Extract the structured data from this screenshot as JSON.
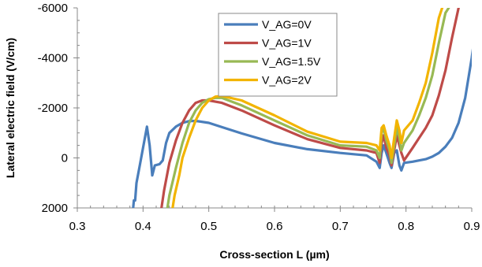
{
  "chart_data": {
    "type": "line",
    "xlabel": "Cross-section L (µm)",
    "ylabel": "Lateral electric field (V/cm)",
    "xlim": [
      0.3,
      0.9
    ],
    "ylim": [
      2000,
      -6000
    ],
    "x_ticks": [
      0.3,
      0.4,
      0.5,
      0.6,
      0.7,
      0.8,
      0.9
    ],
    "x_tick_labels": [
      "0.3",
      "0.4",
      "0.5",
      "0.6",
      "0.7",
      "0.8",
      "0.9"
    ],
    "y_ticks": [
      2000,
      0,
      -2000,
      -4000,
      -6000
    ],
    "y_tick_labels": [
      "2000",
      "0",
      "-2000",
      "-4000",
      "-6000"
    ],
    "y_reversed": true,
    "grid": false,
    "legend_position": "top-right",
    "series": [
      {
        "name": "V_AG=0V",
        "color": "#4a7ebb",
        "points": [
          [
            0.385,
            2000
          ],
          [
            0.386,
            1700
          ],
          [
            0.388,
            1700
          ],
          [
            0.39,
            1000
          ],
          [
            0.395,
            300
          ],
          [
            0.4,
            -400
          ],
          [
            0.406,
            -1250
          ],
          [
            0.41,
            -500
          ],
          [
            0.414,
            700
          ],
          [
            0.418,
            300
          ],
          [
            0.425,
            250
          ],
          [
            0.43,
            100
          ],
          [
            0.435,
            -600
          ],
          [
            0.44,
            -1000
          ],
          [
            0.45,
            -1250
          ],
          [
            0.46,
            -1400
          ],
          [
            0.47,
            -1470
          ],
          [
            0.48,
            -1480
          ],
          [
            0.5,
            -1400
          ],
          [
            0.52,
            -1230
          ],
          [
            0.55,
            -980
          ],
          [
            0.6,
            -600
          ],
          [
            0.65,
            -350
          ],
          [
            0.7,
            -200
          ],
          [
            0.74,
            -100
          ],
          [
            0.755,
            150
          ],
          [
            0.76,
            400
          ],
          [
            0.763,
            -200
          ],
          [
            0.766,
            -500
          ],
          [
            0.77,
            -200
          ],
          [
            0.775,
            200
          ],
          [
            0.778,
            400
          ],
          [
            0.782,
            -200
          ],
          [
            0.786,
            -300
          ],
          [
            0.79,
            300
          ],
          [
            0.793,
            500
          ],
          [
            0.797,
            200
          ],
          [
            0.81,
            150
          ],
          [
            0.82,
            100
          ],
          [
            0.83,
            50
          ],
          [
            0.84,
            -50
          ],
          [
            0.85,
            -200
          ],
          [
            0.86,
            -450
          ],
          [
            0.87,
            -800
          ],
          [
            0.88,
            -1400
          ],
          [
            0.89,
            -2400
          ],
          [
            0.9,
            -4000
          ],
          [
            0.905,
            -5000
          ]
        ]
      },
      {
        "name": "V_AG=1V",
        "color": "#be4b48",
        "points": [
          [
            0.428,
            2000
          ],
          [
            0.432,
            1300
          ],
          [
            0.44,
            200
          ],
          [
            0.45,
            -700
          ],
          [
            0.46,
            -1400
          ],
          [
            0.47,
            -1900
          ],
          [
            0.48,
            -2200
          ],
          [
            0.49,
            -2300
          ],
          [
            0.5,
            -2300
          ],
          [
            0.52,
            -2200
          ],
          [
            0.55,
            -1900
          ],
          [
            0.6,
            -1300
          ],
          [
            0.65,
            -750
          ],
          [
            0.7,
            -400
          ],
          [
            0.74,
            -300
          ],
          [
            0.755,
            -200
          ],
          [
            0.76,
            200
          ],
          [
            0.763,
            -600
          ],
          [
            0.766,
            -900
          ],
          [
            0.77,
            -400
          ],
          [
            0.775,
            -100
          ],
          [
            0.778,
            300
          ],
          [
            0.782,
            -300
          ],
          [
            0.786,
            -900
          ],
          [
            0.79,
            -500
          ],
          [
            0.793,
            -200
          ],
          [
            0.797,
            100
          ],
          [
            0.81,
            -400
          ],
          [
            0.82,
            -800
          ],
          [
            0.83,
            -1200
          ],
          [
            0.84,
            -1700
          ],
          [
            0.85,
            -2500
          ],
          [
            0.86,
            -3500
          ],
          [
            0.87,
            -4800
          ],
          [
            0.88,
            -6000
          ]
        ]
      },
      {
        "name": "V_AG=1.5V",
        "color": "#98b954",
        "points": [
          [
            0.437,
            2000
          ],
          [
            0.44,
            1500
          ],
          [
            0.45,
            400
          ],
          [
            0.46,
            -600
          ],
          [
            0.47,
            -1400
          ],
          [
            0.48,
            -1900
          ],
          [
            0.49,
            -2200
          ],
          [
            0.5,
            -2350
          ],
          [
            0.51,
            -2400
          ],
          [
            0.52,
            -2400
          ],
          [
            0.55,
            -2100
          ],
          [
            0.6,
            -1500
          ],
          [
            0.65,
            -900
          ],
          [
            0.7,
            -500
          ],
          [
            0.74,
            -450
          ],
          [
            0.755,
            -300
          ],
          [
            0.76,
            0
          ],
          [
            0.763,
            -1000
          ],
          [
            0.766,
            -1200
          ],
          [
            0.77,
            -700
          ],
          [
            0.775,
            -300
          ],
          [
            0.778,
            200
          ],
          [
            0.782,
            -500
          ],
          [
            0.786,
            -1200
          ],
          [
            0.79,
            -800
          ],
          [
            0.793,
            -300
          ],
          [
            0.797,
            -600
          ],
          [
            0.81,
            -1100
          ],
          [
            0.82,
            -1700
          ],
          [
            0.83,
            -2400
          ],
          [
            0.84,
            -3300
          ],
          [
            0.85,
            -4600
          ],
          [
            0.86,
            -5800
          ],
          [
            0.865,
            -6000
          ]
        ]
      },
      {
        "name": "V_AG=2V",
        "color": "#f2b400",
        "points": [
          [
            0.445,
            2000
          ],
          [
            0.448,
            1500
          ],
          [
            0.455,
            700
          ],
          [
            0.46,
            0
          ],
          [
            0.47,
            -800
          ],
          [
            0.48,
            -1500
          ],
          [
            0.49,
            -2000
          ],
          [
            0.5,
            -2300
          ],
          [
            0.51,
            -2450
          ],
          [
            0.52,
            -2480
          ],
          [
            0.55,
            -2300
          ],
          [
            0.6,
            -1700
          ],
          [
            0.65,
            -1050
          ],
          [
            0.7,
            -650
          ],
          [
            0.74,
            -600
          ],
          [
            0.755,
            -500
          ],
          [
            0.76,
            -300
          ],
          [
            0.763,
            -1200
          ],
          [
            0.766,
            -1300
          ],
          [
            0.77,
            -900
          ],
          [
            0.775,
            -500
          ],
          [
            0.778,
            0
          ],
          [
            0.782,
            -800
          ],
          [
            0.786,
            -1500
          ],
          [
            0.79,
            -1100
          ],
          [
            0.793,
            -600
          ],
          [
            0.797,
            -1100
          ],
          [
            0.81,
            -1500
          ],
          [
            0.82,
            -2200
          ],
          [
            0.83,
            -3000
          ],
          [
            0.84,
            -4200
          ],
          [
            0.85,
            -5600
          ],
          [
            0.855,
            -6000
          ]
        ]
      }
    ]
  }
}
